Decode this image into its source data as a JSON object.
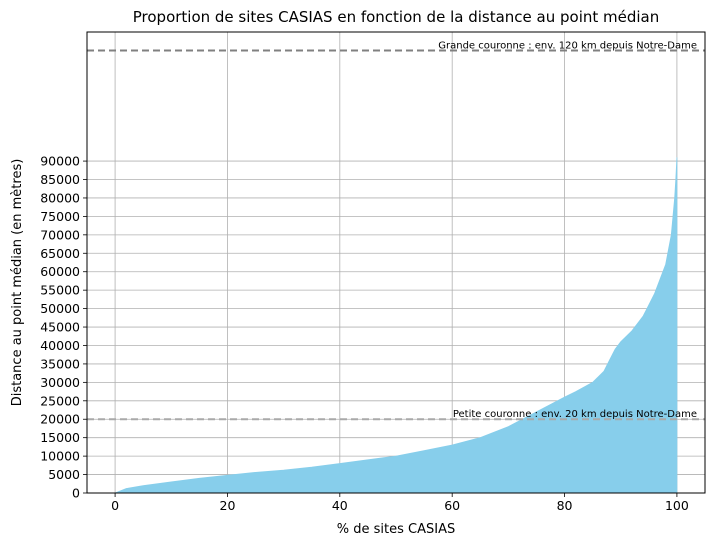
{
  "chart_data": {
    "type": "area",
    "title": "Proportion de sites CASIAS en fonction de la distance au point médian",
    "xlabel": "% de sites CASIAS",
    "ylabel": "Distance au point médian (en mètres)",
    "xlim": [
      -5,
      105
    ],
    "ylim": [
      0,
      125000
    ],
    "xticks": [
      0,
      20,
      40,
      60,
      80,
      100
    ],
    "yticks": [
      0,
      5000,
      10000,
      15000,
      20000,
      25000,
      30000,
      35000,
      40000,
      45000,
      50000,
      55000,
      60000,
      65000,
      70000,
      75000,
      80000,
      85000,
      90000
    ],
    "grid": true,
    "series": [
      {
        "color": "#87ceeb",
        "x": [
          0,
          2,
          5,
          10,
          15,
          20,
          25,
          30,
          35,
          40,
          45,
          50,
          55,
          60,
          65,
          70,
          75,
          80,
          82,
          85,
          87,
          88,
          89,
          90,
          92,
          94,
          95,
          96,
          97,
          98,
          98.5,
          99,
          99.3,
          99.6,
          99.8,
          100
        ],
        "y": [
          0,
          1200,
          2000,
          3000,
          4000,
          4800,
          5600,
          6200,
          7000,
          8000,
          9000,
          10000,
          11500,
          13000,
          15000,
          18000,
          22000,
          26000,
          27500,
          30000,
          33000,
          36000,
          39000,
          41000,
          44000,
          48000,
          51000,
          54000,
          58000,
          62000,
          66000,
          70000,
          75000,
          80000,
          85000,
          91000
        ]
      }
    ],
    "hlines": [
      {
        "y": 120000,
        "color": "#808080",
        "label": "Grande couronne : env. 120 km depuis Notre-Dame"
      },
      {
        "y": 20000,
        "color": "#a9a9a9",
        "label": "Petite couronne : env. 20 km depuis Notre-Dame"
      }
    ]
  }
}
